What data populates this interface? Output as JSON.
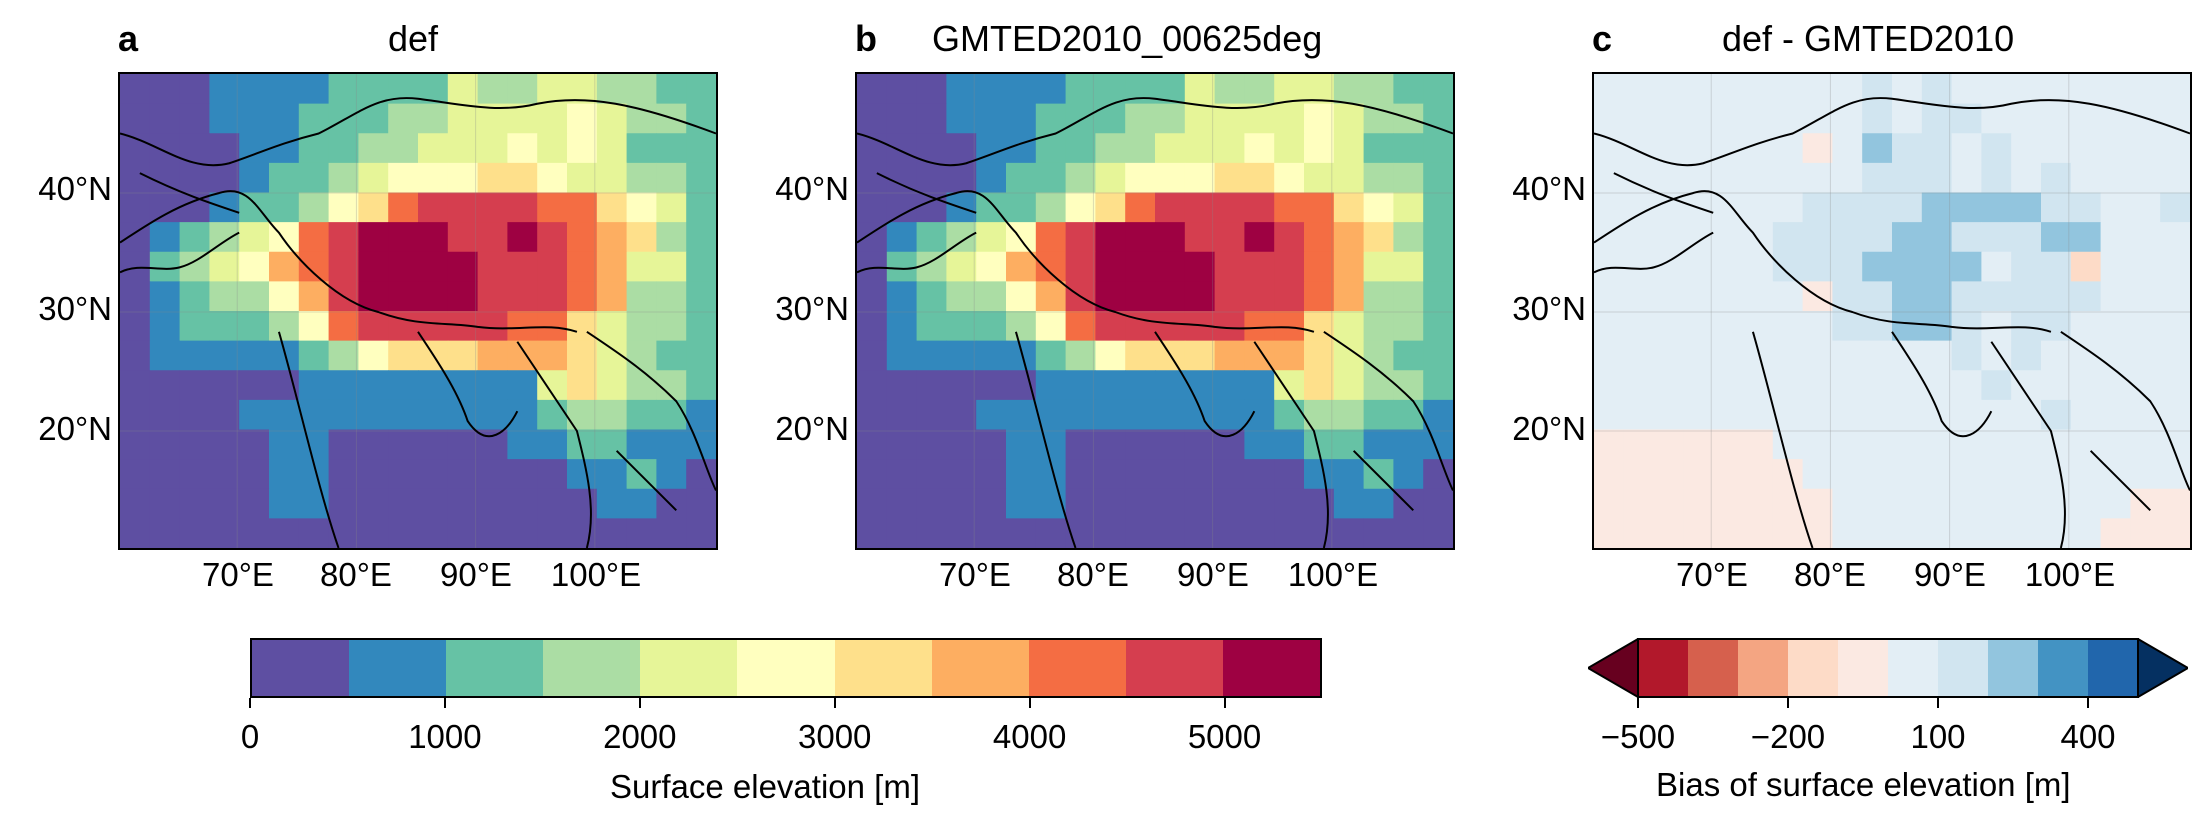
{
  "panels": [
    {
      "letter": "a",
      "title": "def"
    },
    {
      "letter": "b",
      "title": "GMTED2010_00625deg"
    },
    {
      "letter": "c",
      "title": "def - GMTED2010"
    }
  ],
  "axes": {
    "lat_labels": [
      "40°N",
      "30°N",
      "20°N"
    ],
    "lon_labels": [
      "70°E",
      "80°E",
      "90°E",
      "100°E"
    ]
  },
  "colorbar_elevation": {
    "label": "Surface elevation [m]",
    "ticks": [
      "0",
      "1000",
      "2000",
      "3000",
      "4000",
      "5000"
    ],
    "colors": [
      "#5e4fa2",
      "#3288bd",
      "#66c2a5",
      "#abdda4",
      "#e6f598",
      "#ffffbf",
      "#fee08b",
      "#fdae61",
      "#f46d43",
      "#d53e4f",
      "#9e0142"
    ]
  },
  "colorbar_bias": {
    "label": "Bias of surface elevation [m]",
    "ticks": [
      "−500",
      "−200",
      "100",
      "400"
    ],
    "colors": [
      "#67001f",
      "#b2182b",
      "#d6604d",
      "#f4a582",
      "#fddbc7",
      "#fbe9e2",
      "#e3eef5",
      "#d1e5f0",
      "#92c5de",
      "#4393c3",
      "#2166ac",
      "#053061"
    ]
  }
}
